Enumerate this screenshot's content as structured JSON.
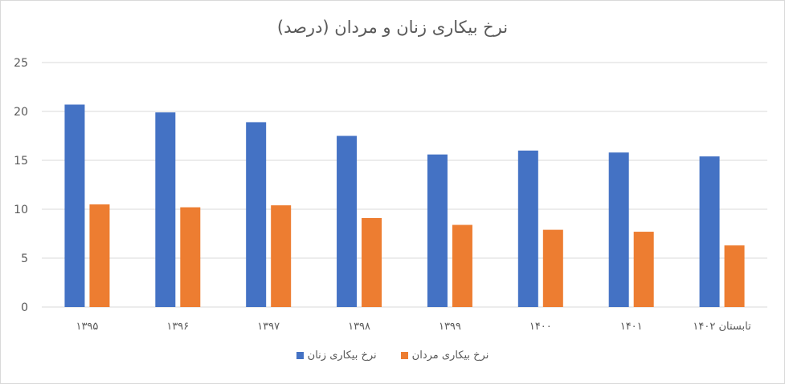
{
  "chart_data": {
    "type": "bar",
    "title": "نرخ بیکاری زنان و مردان (درصد)",
    "categories": [
      "۱۳۹۵",
      "۱۳۹۶",
      "۱۳۹۷",
      "۱۳۹۸",
      "۱۳۹۹",
      "۱۴۰۰",
      "۱۴۰۱",
      "تابستان ۱۴۰۲"
    ],
    "series": [
      {
        "name": "نرخ بیکاری زنان",
        "color": "#4472c4",
        "values": [
          20.7,
          19.9,
          18.9,
          17.5,
          15.6,
          16.0,
          15.8,
          15.4
        ]
      },
      {
        "name": "نرخ بیکاری مردان",
        "color": "#ed7d31",
        "values": [
          10.5,
          10.2,
          10.4,
          9.1,
          8.4,
          7.9,
          7.7,
          6.3
        ]
      }
    ],
    "ylim": [
      0,
      25
    ],
    "yticks": [
      "0",
      "5",
      "10",
      "15",
      "20",
      "25"
    ],
    "grid": true,
    "legend": "bottom"
  }
}
